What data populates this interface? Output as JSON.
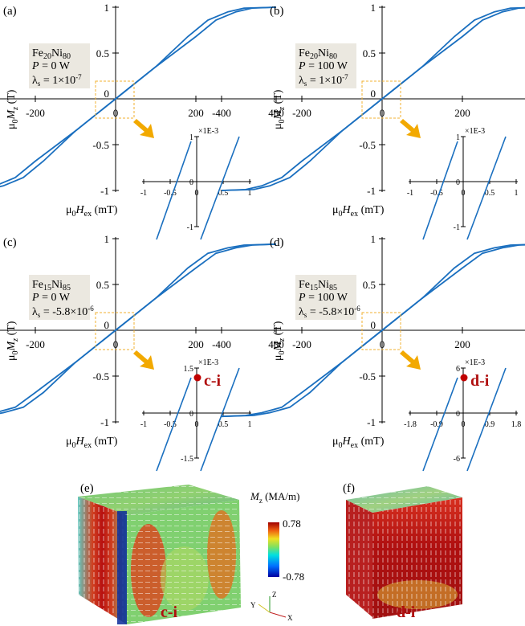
{
  "panels": [
    {
      "label": "(a)",
      "material_main": "Fe",
      "material_sub1": "20",
      "material_main2": "Ni",
      "material_sub2": "80",
      "power": "P = 0 W",
      "lambda_val": " = 1×10",
      "lambda_exp": "-7",
      "inset_scale": "×1E-3",
      "inset_x_ticks": [
        "-1",
        "-0.5",
        "0",
        "0.5",
        "1"
      ],
      "inset_y_ticks": [
        "1",
        "0",
        "-1"
      ],
      "marker": ""
    },
    {
      "label": "(b)",
      "material_main": "Fe",
      "material_sub1": "20",
      "material_main2": "Ni",
      "material_sub2": "80",
      "power": "P = 100 W",
      "lambda_val": " = 1×10",
      "lambda_exp": "-7",
      "inset_scale": "×1E-3",
      "inset_x_ticks": [
        "-1",
        "-0.5",
        "0",
        "0.5",
        "1"
      ],
      "inset_y_ticks": [
        "1",
        "0",
        "-1"
      ],
      "marker": ""
    },
    {
      "label": "(c)",
      "material_main": "Fe",
      "material_sub1": "15",
      "material_main2": "Ni",
      "material_sub2": "85",
      "power": "P = 0 W",
      "lambda_val": " = -5.8×10",
      "lambda_exp": "-6",
      "inset_scale": "×1E-3",
      "inset_x_ticks": [
        "-1",
        "-0.5",
        "0",
        "0.5",
        "1"
      ],
      "inset_y_ticks": [
        "1.5",
        "0",
        "-1.5"
      ],
      "marker": "c-i"
    },
    {
      "label": "(d)",
      "material_main": "Fe",
      "material_sub1": "15",
      "material_main2": "Ni",
      "material_sub2": "85",
      "power": "P = 100 W",
      "lambda_val": " = -5.8×10",
      "lambda_exp": "-6",
      "inset_scale": "×1E-3",
      "inset_x_ticks": [
        "-1.8",
        "-0.9",
        "0",
        "0.9",
        "1.8"
      ],
      "inset_y_ticks": [
        "6",
        "0",
        "-6"
      ],
      "marker": "d-i"
    }
  ],
  "main_axes": {
    "x_ticks": [
      "-400",
      "-200",
      "0",
      "200",
      "400"
    ],
    "y_ticks": [
      "1",
      "0.5",
      "0",
      "-0.5",
      "-1"
    ],
    "xlabel_prefix": "μ",
    "xlabel_sub0": "0",
    "xlabel_var": "H",
    "xlabel_sub": "ex",
    "xlabel_unit": " (mT)",
    "ylabel_prefix": "μ",
    "ylabel_sub0": "0",
    "ylabel_var": "M",
    "ylabel_sub": "z",
    "ylabel_unit": " (T)"
  },
  "bottom": {
    "panel_e": "(e)",
    "panel_f": "(f)",
    "caption_e": "c-i",
    "caption_f": "d-i",
    "colorbar_title_var": "M",
    "colorbar_title_sub": "z",
    "colorbar_title_unit": " (MA/m)",
    "colorbar_max": "0.78",
    "colorbar_min": "-0.78",
    "axis_x": "X",
    "axis_y": "Y",
    "axis_z": "Z"
  },
  "colors": {
    "curve": "#1a6fbf",
    "box_fill": "#ebe8e0",
    "zoom_box": "#f0b030",
    "arrow": "#f2a900",
    "marker": "#c00000"
  },
  "chart_data": [
    {
      "type": "line",
      "panel": "(a)",
      "xlabel": "μ0Hex (mT)",
      "ylabel": "μ0Mz (T)",
      "xlim": [
        -400,
        400
      ],
      "ylim": [
        -1,
        1
      ],
      "series": [
        {
          "values_x": [
            -400,
            -340,
            -300,
            -250,
            -200,
            -100,
            0,
            100,
            200,
            250,
            300,
            340,
            400
          ],
          "values_y": [
            -1,
            -0.99,
            -0.95,
            -0.86,
            -0.68,
            -0.35,
            0,
            0.35,
            0.68,
            0.86,
            0.95,
            0.99,
            1
          ]
        }
      ]
    },
    {
      "type": "line",
      "panel": "(b)",
      "xlabel": "μ0Hex (mT)",
      "ylabel": "μ0Mz (T)",
      "xlim": [
        -400,
        400
      ],
      "ylim": [
        -1,
        1
      ],
      "series": [
        {
          "values_x": [
            -400,
            -340,
            -300,
            -250,
            -200,
            -100,
            0,
            100,
            200,
            250,
            300,
            340,
            400
          ],
          "values_y": [
            -1,
            -0.99,
            -0.95,
            -0.86,
            -0.68,
            -0.35,
            0,
            0.35,
            0.68,
            0.86,
            0.95,
            0.99,
            1
          ]
        }
      ]
    },
    {
      "type": "line",
      "panel": "(c)",
      "xlabel": "μ0Hex (mT)",
      "ylabel": "μ0Mz (T)",
      "xlim": [
        -400,
        400
      ],
      "ylim": [
        -1,
        1
      ],
      "series": [
        {
          "values_x": [
            -400,
            -340,
            -300,
            -250,
            -200,
            -100,
            0,
            100,
            200,
            250,
            300,
            340,
            400
          ],
          "values_y": [
            -0.94,
            -0.93,
            -0.9,
            -0.84,
            -0.68,
            -0.35,
            0,
            0.35,
            0.68,
            0.84,
            0.9,
            0.93,
            0.94
          ]
        }
      ]
    },
    {
      "type": "line",
      "panel": "(d)",
      "xlabel": "μ0Hex (mT)",
      "ylabel": "μ0Mz (T)",
      "xlim": [
        -400,
        400
      ],
      "ylim": [
        -1,
        1
      ],
      "series": [
        {
          "values_x": [
            -400,
            -340,
            -300,
            -250,
            -200,
            -100,
            0,
            100,
            200,
            250,
            300,
            340,
            400
          ],
          "values_y": [
            -0.94,
            -0.93,
            -0.9,
            -0.84,
            -0.68,
            -0.35,
            0,
            0.35,
            0.68,
            0.84,
            0.9,
            0.93,
            0.94
          ]
        }
      ]
    }
  ]
}
